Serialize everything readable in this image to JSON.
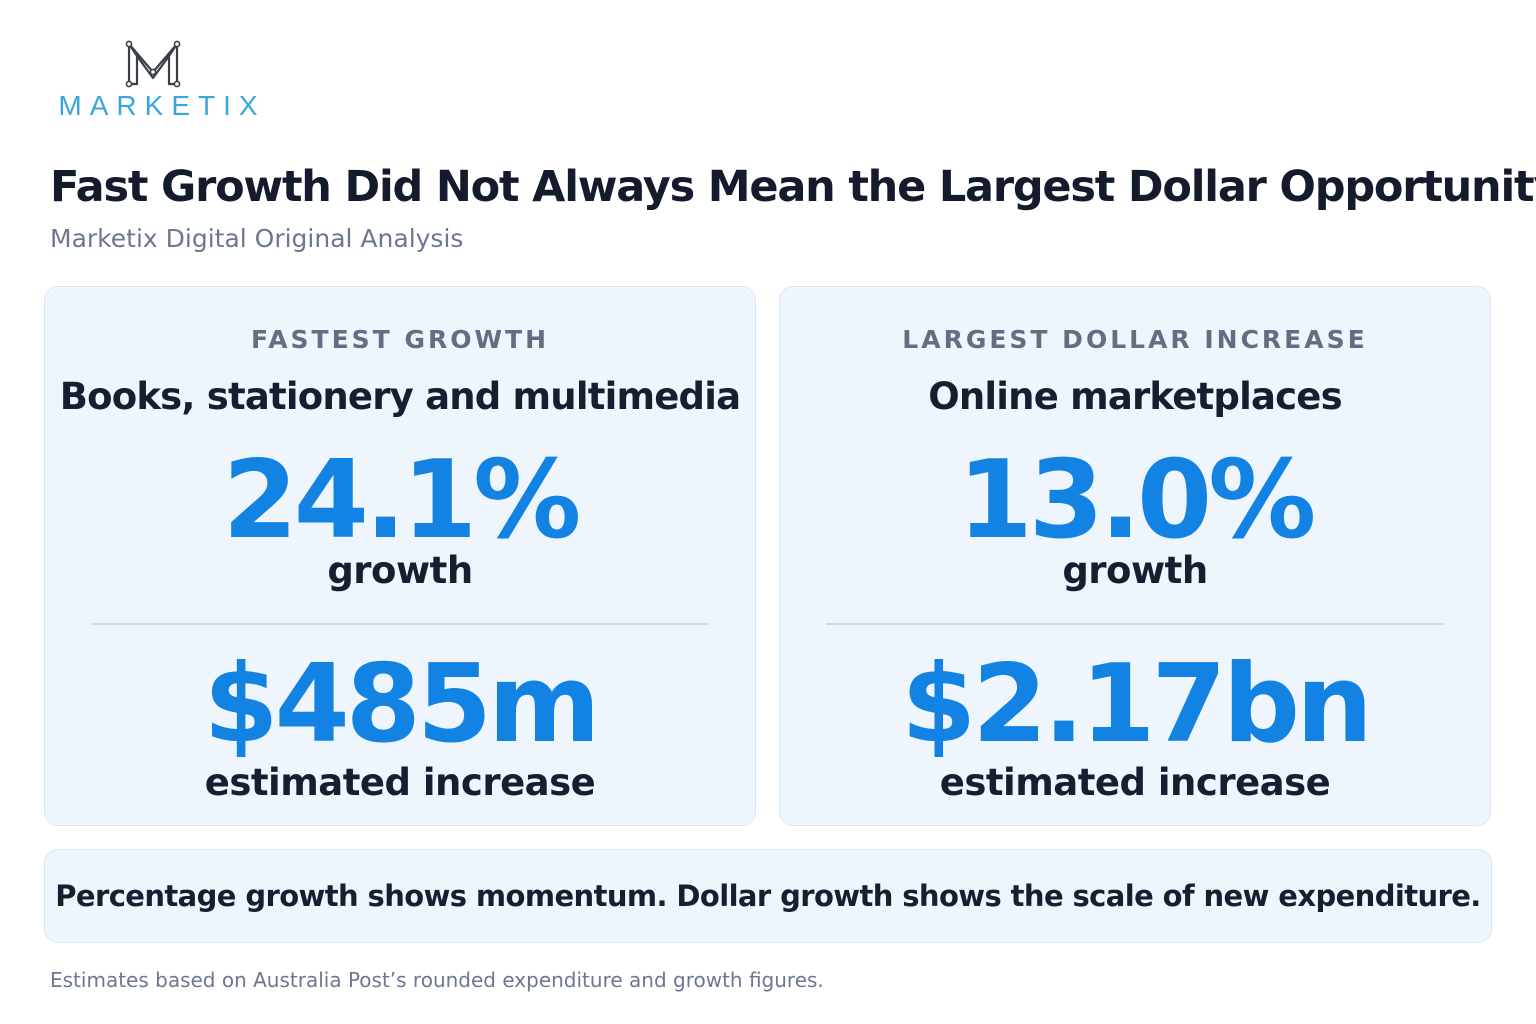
{
  "brand": {
    "name": "MARKETIX",
    "accent_color": "#3aa6dd",
    "icon": "marketix-m-logo-icon"
  },
  "header": {
    "title": "Fast Growth Did Not Always Mean the Largest Dollar Opportunity",
    "subtitle": "Marketix Digital Original Analysis"
  },
  "cards": [
    {
      "label": "FASTEST GROWTH",
      "category": "Books, stationery and multimedia",
      "growth_value": "24.1%",
      "growth_caption": "growth",
      "dollar_value": "$485m",
      "dollar_caption": "estimated increase"
    },
    {
      "label": "LARGEST DOLLAR INCREASE",
      "category": "Online marketplaces",
      "growth_value": "13.0%",
      "growth_caption": "growth",
      "dollar_value": "$2.17bn",
      "dollar_caption": "estimated increase"
    }
  ],
  "insight": "Percentage growth shows momentum. Dollar growth shows the scale of new expenditure.",
  "footnote": "Estimates based on Australia Post’s rounded expenditure and growth figures.",
  "colors": {
    "highlight_number": "#1283e3",
    "card_background": "#eef5fc",
    "title_text": "#141b2d",
    "muted_text": "#6c7890"
  }
}
